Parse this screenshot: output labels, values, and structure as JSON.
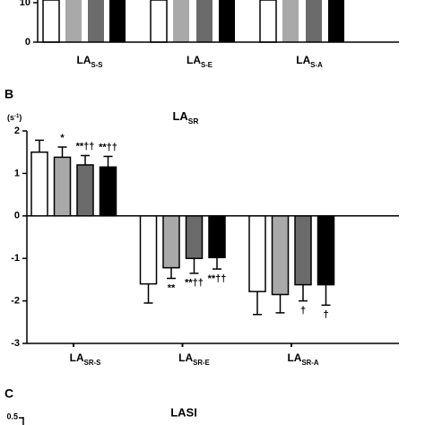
{
  "chart_data": [
    {
      "type": "bar",
      "categories": [
        {
          "text": "LA",
          "sub": "S-S"
        },
        {
          "text": "LA",
          "sub": "S-E"
        },
        {
          "text": "LA",
          "sub": "S-A"
        }
      ],
      "ylim": [
        0,
        10
      ],
      "yticks": [
        0,
        10
      ]
    },
    {
      "type": "bar",
      "panel": "B",
      "title": {
        "text": "LA",
        "sub": "SR"
      },
      "unit": {
        "text": "(s",
        "sup": "-1",
        "close": ")"
      },
      "categories": [
        {
          "text": "LA",
          "sub": "SR-S"
        },
        {
          "text": "LA",
          "sub": "SR-E"
        },
        {
          "text": "LA",
          "sub": "SR-A"
        }
      ],
      "ylim": [
        -3,
        2
      ],
      "yticks": [
        2,
        1,
        0,
        -1,
        -2,
        -3
      ],
      "series": [
        {
          "color": "#ffffff",
          "values": [
            1.5,
            -1.6,
            -1.78
          ],
          "errors": [
            0.28,
            0.45,
            0.54
          ],
          "annotations": [
            null,
            null,
            null
          ]
        },
        {
          "color": "#a9a9a9",
          "values": [
            1.38,
            -1.22,
            -1.85
          ],
          "errors": [
            0.24,
            0.25,
            0.43
          ],
          "annotations": [
            "*",
            "**",
            null
          ]
        },
        {
          "color": "#6b6b6b",
          "values": [
            1.2,
            -1.0,
            -1.62
          ],
          "errors": [
            0.22,
            0.35,
            0.38
          ],
          "annotations": [
            "**††",
            "**††",
            "†"
          ]
        },
        {
          "color": "#000000",
          "values": [
            1.15,
            -0.98,
            -1.62
          ],
          "errors": [
            0.25,
            0.27,
            0.48
          ],
          "annotations": [
            "**††",
            "**††",
            "†"
          ]
        }
      ]
    },
    {
      "type": "bar",
      "panel": "C",
      "title": "LASI",
      "yticks": [
        0.5
      ]
    }
  ]
}
